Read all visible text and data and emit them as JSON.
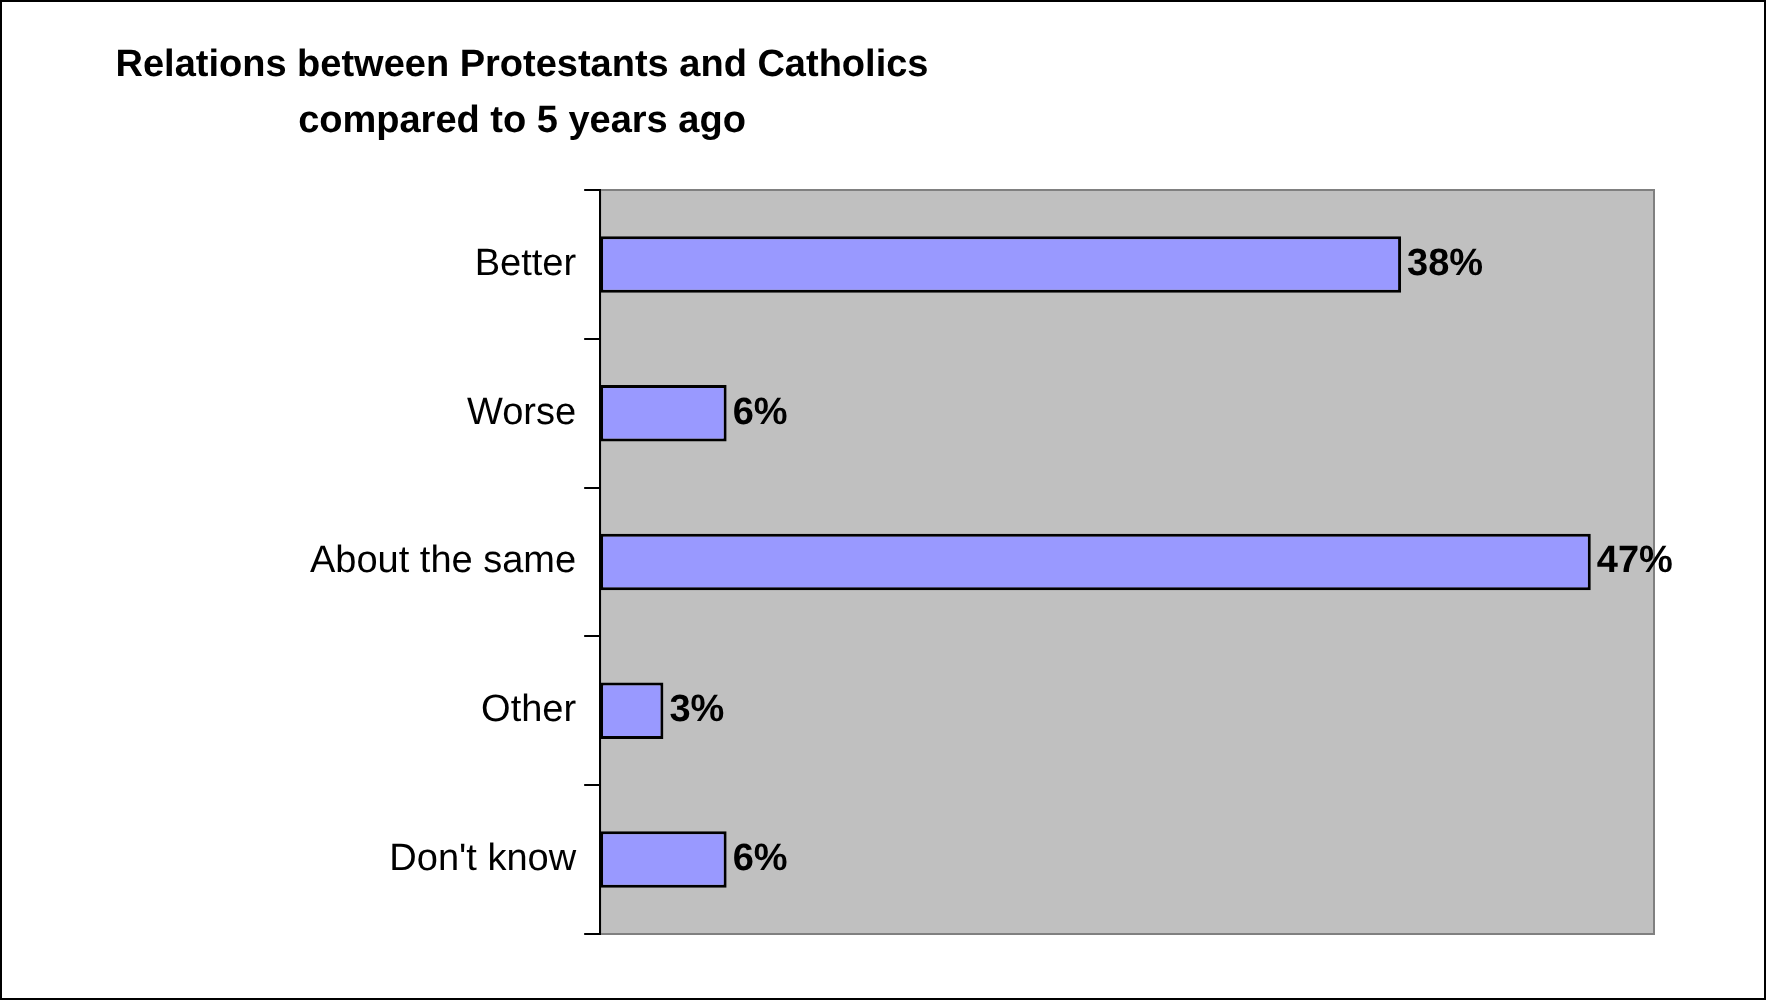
{
  "chart_data": {
    "type": "bar",
    "orientation": "horizontal",
    "tick_labels": "y",
    "title": "Relations between Protestants and Catholics compared to 5 years ago",
    "categories": [
      "Better",
      "Worse",
      "About the same",
      "Other",
      "Don't know"
    ],
    "values": [
      38,
      6,
      47,
      3,
      6
    ],
    "value_labels": [
      "38%",
      "6%",
      "47%",
      "3%",
      "6%"
    ],
    "color": "#9999ff"
  }
}
